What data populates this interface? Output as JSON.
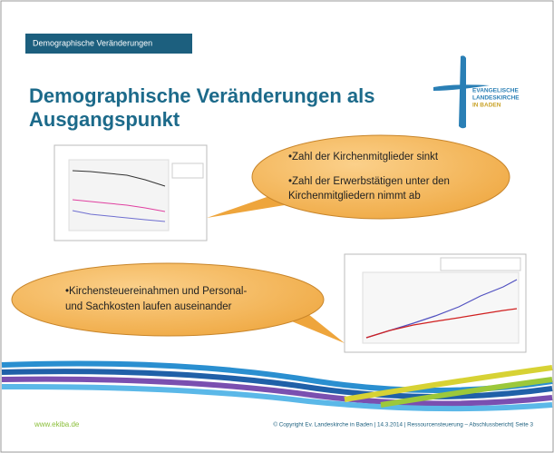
{
  "header": {
    "tag": "Demographische Veränderungen",
    "title_lines": [
      "Demographische Veränderungen als",
      "Ausgangspunkt"
    ]
  },
  "logo": {
    "lines": [
      "EVANGELISCHE",
      "LANDESKIRCHE",
      "IN BADEN"
    ]
  },
  "callouts": [
    {
      "lines": [
        "•Zahl der Kirchenmitglieder sinkt",
        "•Zahl der Erwerbstätigen unter den",
        "Kirchenmitgliedern nimmt ab"
      ]
    },
    {
      "lines": [
        "•Kirchensteuereinahmen und Personal-",
        "und Sachkosten laufen auseinander"
      ]
    }
  ],
  "footer": {
    "url": "www.ekiba.de",
    "copyright": "© Copyright Ev. Landeskirche in Baden | 14.3.2014 | Ressourcensteuerung – Abschlussbericht| Seite 3"
  }
}
